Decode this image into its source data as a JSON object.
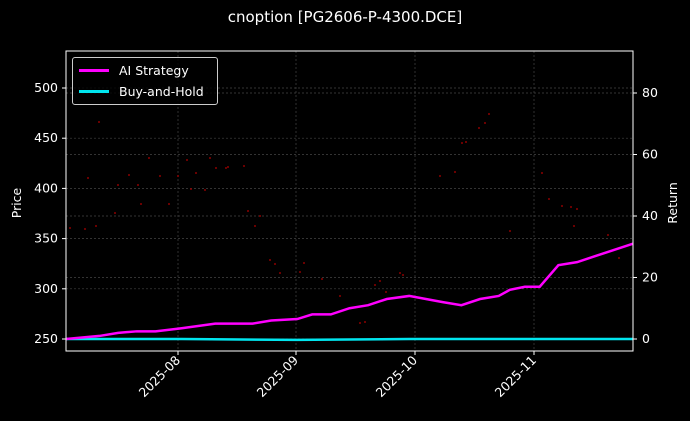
{
  "chart_data": {
    "type": "line",
    "title": "cnoption [PG2606-P-4300.DCE]",
    "xlabel": "",
    "ylabel": "Price",
    "ylabel_right": "Return",
    "x_ticks": [
      "2025-08",
      "2025-09",
      "2025-10",
      "2025-11"
    ],
    "y_ticks_left": [
      250,
      300,
      350,
      400,
      450,
      500
    ],
    "y_ticks_right": [
      0,
      20,
      40,
      60,
      80
    ],
    "ylim_left": [
      236,
      536
    ],
    "ylim_right": [
      -4,
      93
    ],
    "grid": true,
    "legend_position": "upper left",
    "colors": {
      "ai_strategy": "#ff00ff",
      "buy_and_hold": "#00e5ee",
      "price_dots": "#8b0000",
      "background": "#000000"
    },
    "series": [
      {
        "name": "AI Strategy",
        "axis": "right",
        "x": [
          "2025-07-01",
          "2025-07-10",
          "2025-07-15",
          "2025-07-20",
          "2025-07-25",
          "2025-08-01",
          "2025-08-10",
          "2025-08-20",
          "2025-08-25",
          "2025-09-01",
          "2025-09-05",
          "2025-09-10",
          "2025-09-15",
          "2025-09-20",
          "2025-09-25",
          "2025-10-01",
          "2025-10-10",
          "2025-10-15",
          "2025-10-20",
          "2025-10-25",
          "2025-10-28",
          "2025-11-01",
          "2025-11-05",
          "2025-11-10",
          "2025-11-15",
          "2025-11-20",
          "2025-11-25",
          "2025-11-30"
        ],
        "values": [
          0,
          1,
          2,
          2.5,
          2.5,
          3.5,
          5,
          5,
          6,
          6.5,
          8,
          8,
          10,
          11,
          13,
          14,
          12,
          11,
          13,
          14,
          16,
          17,
          17,
          24,
          25,
          27,
          29,
          31
        ]
      },
      {
        "name": "Buy-and-Hold",
        "axis": "right",
        "x": [
          "2025-07-01",
          "2025-08-01",
          "2025-09-01",
          "2025-10-01",
          "2025-11-01",
          "2025-11-30"
        ],
        "values": [
          0,
          0,
          -0.3,
          0,
          0,
          0
        ]
      },
      {
        "name": "Price",
        "axis": "left",
        "style": "scatter-dots",
        "values_approx_range": [
          250,
          475
        ]
      }
    ]
  },
  "legend": {
    "items": [
      {
        "label": "AI Strategy",
        "color": "#ff00ff"
      },
      {
        "label": "Buy-and-Hold",
        "color": "#00e5ee"
      }
    ]
  }
}
